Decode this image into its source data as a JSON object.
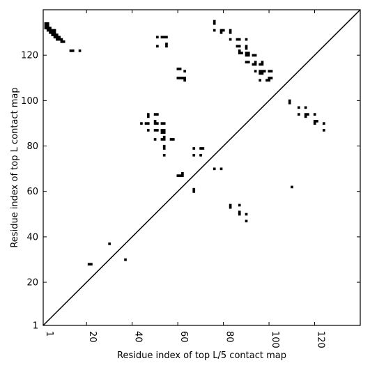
{
  "chart_data": {
    "type": "scatter",
    "title": "",
    "xlabel": "Residue index of top L/5 contact map",
    "ylabel": "Residue index of top L contact map",
    "xlim": [
      1,
      140
    ],
    "ylim": [
      1,
      140
    ],
    "x_ticks": [
      1,
      20,
      40,
      60,
      80,
      100,
      120
    ],
    "y_ticks": [
      1,
      20,
      40,
      60,
      80,
      100,
      120
    ],
    "grid": false,
    "diagonal_line": true,
    "marker": "square",
    "marker_color": "#000000",
    "points_upper_top_L": [
      [
        2,
        134
      ],
      [
        3,
        134
      ],
      [
        2,
        133
      ],
      [
        3,
        133
      ],
      [
        2,
        132
      ],
      [
        3,
        132
      ],
      [
        4,
        132
      ],
      [
        3,
        131
      ],
      [
        4,
        131
      ],
      [
        5,
        131
      ],
      [
        6,
        131
      ],
      [
        4,
        130
      ],
      [
        5,
        130
      ],
      [
        6,
        130
      ],
      [
        5,
        129
      ],
      [
        6,
        129
      ],
      [
        7,
        129
      ],
      [
        6,
        128
      ],
      [
        7,
        128
      ],
      [
        8,
        128
      ],
      [
        7,
        127
      ],
      [
        8,
        127
      ],
      [
        9,
        127
      ],
      [
        9,
        126
      ],
      [
        10,
        126
      ],
      [
        13,
        122
      ],
      [
        14,
        122
      ],
      [
        17,
        122
      ],
      [
        51,
        128
      ],
      [
        53,
        128
      ],
      [
        54,
        128
      ],
      [
        55,
        128
      ],
      [
        51,
        124
      ],
      [
        55,
        124
      ],
      [
        55,
        125
      ],
      [
        60,
        114
      ],
      [
        61,
        114
      ],
      [
        63,
        113
      ],
      [
        60,
        110
      ],
      [
        61,
        110
      ],
      [
        62,
        110
      ],
      [
        63,
        110
      ],
      [
        63,
        109
      ],
      [
        76,
        135
      ],
      [
        76,
        134
      ],
      [
        76,
        131
      ],
      [
        79,
        131
      ],
      [
        80,
        131
      ],
      [
        79,
        130
      ],
      [
        83,
        131
      ],
      [
        83,
        130
      ],
      [
        83,
        127
      ],
      [
        86,
        127
      ],
      [
        87,
        127
      ],
      [
        90,
        127
      ],
      [
        86,
        124
      ],
      [
        87,
        124
      ],
      [
        90,
        124
      ],
      [
        90,
        123
      ],
      [
        87,
        122
      ],
      [
        87,
        121
      ],
      [
        88,
        121
      ],
      [
        90,
        121
      ],
      [
        91,
        121
      ],
      [
        90,
        120
      ],
      [
        91,
        120
      ],
      [
        93,
        120
      ],
      [
        94,
        120
      ],
      [
        90,
        117
      ],
      [
        91,
        117
      ],
      [
        93,
        116
      ],
      [
        94,
        116
      ],
      [
        94,
        117
      ],
      [
        96,
        116
      ],
      [
        97,
        116
      ],
      [
        97,
        117
      ],
      [
        94,
        113
      ],
      [
        96,
        113
      ],
      [
        97,
        113
      ],
      [
        98,
        113
      ],
      [
        100,
        113
      ],
      [
        101,
        113
      ],
      [
        96,
        112
      ],
      [
        97,
        112
      ],
      [
        96,
        109
      ],
      [
        99,
        109
      ],
      [
        100,
        109
      ],
      [
        100,
        110
      ],
      [
        101,
        110
      ],
      [
        109,
        100
      ],
      [
        109,
        99
      ],
      [
        113,
        97
      ],
      [
        116,
        97
      ],
      [
        113,
        94
      ],
      [
        116,
        94
      ],
      [
        117,
        94
      ],
      [
        116,
        93
      ],
      [
        120,
        94
      ],
      [
        120,
        91
      ],
      [
        121,
        91
      ],
      [
        120,
        90
      ],
      [
        124,
        90
      ],
      [
        124,
        87
      ],
      [
        44,
        90
      ],
      [
        46,
        90
      ],
      [
        47,
        90
      ],
      [
        47,
        94
      ],
      [
        47,
        93
      ],
      [
        50,
        94
      ],
      [
        51,
        94
      ],
      [
        47,
        87
      ],
      [
        50,
        90
      ],
      [
        51,
        90
      ],
      [
        50,
        91
      ],
      [
        53,
        90
      ],
      [
        54,
        90
      ],
      [
        50,
        87
      ],
      [
        51,
        87
      ],
      [
        53,
        87
      ],
      [
        54,
        87
      ],
      [
        53,
        86
      ],
      [
        54,
        86
      ],
      [
        50,
        83
      ],
      [
        53,
        83
      ],
      [
        54,
        83
      ],
      [
        54,
        84
      ],
      [
        57,
        83
      ],
      [
        58,
        83
      ],
      [
        54,
        80
      ],
      [
        54,
        79
      ],
      [
        54,
        76
      ],
      [
        60,
        67
      ],
      [
        61,
        67
      ],
      [
        62,
        67
      ],
      [
        62,
        68
      ],
      [
        67,
        79
      ],
      [
        67,
        76
      ],
      [
        70,
        79
      ],
      [
        71,
        79
      ],
      [
        70,
        76
      ],
      [
        67,
        61
      ],
      [
        67,
        60
      ],
      [
        76,
        70
      ],
      [
        79,
        70
      ],
      [
        83,
        54
      ],
      [
        83,
        53
      ],
      [
        87,
        54
      ],
      [
        87,
        51
      ],
      [
        87,
        50
      ],
      [
        90,
        50
      ],
      [
        90,
        47
      ],
      [
        110,
        62
      ],
      [
        21,
        28
      ],
      [
        22,
        28
      ],
      [
        30,
        37
      ],
      [
        37,
        30
      ]
    ]
  }
}
